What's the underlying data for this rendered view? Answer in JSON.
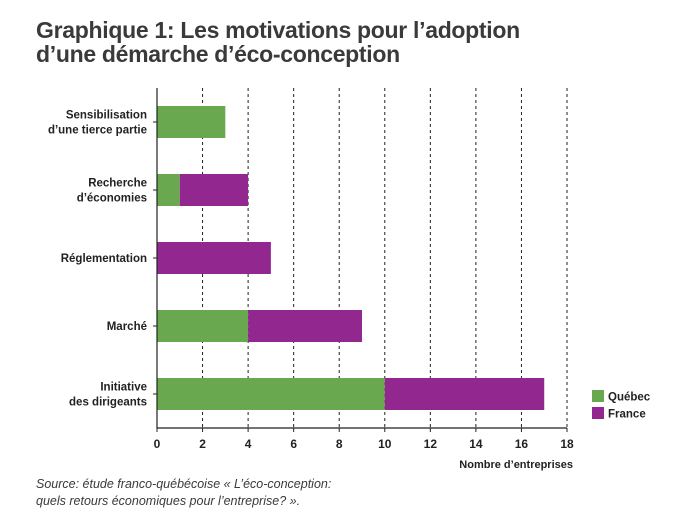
{
  "title": {
    "line1": "Graphique 1: Les motivations pour l’adoption",
    "line2": "d’une démarche d’éco-conception"
  },
  "source": {
    "line1": "Source: étude franco-québécoise « L’éco-conception:",
    "line2": "quels retours économiques pour l’entreprise? »."
  },
  "chart_data": {
    "type": "bar",
    "orientation": "horizontal",
    "stacked": true,
    "categories": [
      [
        "Sensibilisation",
        "d’une tierce partie"
      ],
      [
        "Recherche",
        "d’économies"
      ],
      [
        "Réglementation"
      ],
      [
        "Marché"
      ],
      [
        "Initiative",
        "des dirigeants"
      ]
    ],
    "series": [
      {
        "name": "Québec",
        "color": "#6aa84f",
        "values": [
          3,
          1,
          0,
          4,
          10
        ]
      },
      {
        "name": "France",
        "color": "#92278f",
        "values": [
          0,
          3,
          5,
          5,
          7
        ]
      }
    ],
    "xlabel": "Nombre d’entreprises",
    "xlim": [
      0,
      18
    ],
    "xticks": [
      "0",
      "2",
      "4",
      "6",
      "8",
      "10",
      "12",
      "14",
      "16",
      "18"
    ],
    "grid": "vertical-dashed",
    "legend_position": "bottom-right"
  }
}
